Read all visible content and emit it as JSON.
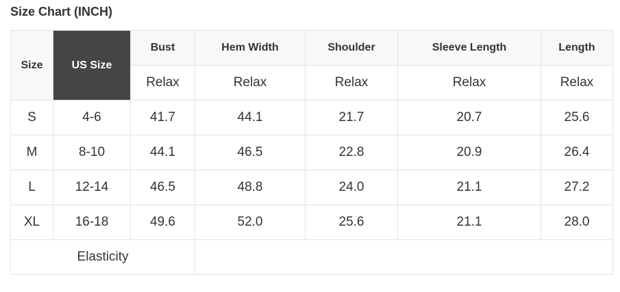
{
  "title": "Size Chart (INCH)",
  "headers": {
    "size": "Size",
    "us_size": "US Size",
    "cols": [
      "Bust",
      "Hem Width",
      "Shoulder",
      "Sleeve Length",
      "Length"
    ]
  },
  "fit": [
    "Relax",
    "Relax",
    "Relax",
    "Relax",
    "Relax"
  ],
  "rows": [
    {
      "size": "S",
      "us": "4-6",
      "values": [
        "41.7",
        "44.1",
        "21.7",
        "20.7",
        "25.6"
      ]
    },
    {
      "size": "M",
      "us": "8-10",
      "values": [
        "44.1",
        "46.5",
        "22.8",
        "20.9",
        "26.4"
      ]
    },
    {
      "size": "L",
      "us": "12-14",
      "values": [
        "46.5",
        "48.8",
        "24.0",
        "21.1",
        "27.2"
      ]
    },
    {
      "size": "XL",
      "us": "16-18",
      "values": [
        "49.6",
        "52.0",
        "25.6",
        "21.1",
        "28.0"
      ]
    }
  ],
  "elasticity_label": "Elasticity",
  "colors": {
    "header_bg": "#f8f8f8",
    "us_size_bg": "#454545",
    "border": "#e3e3e3"
  }
}
